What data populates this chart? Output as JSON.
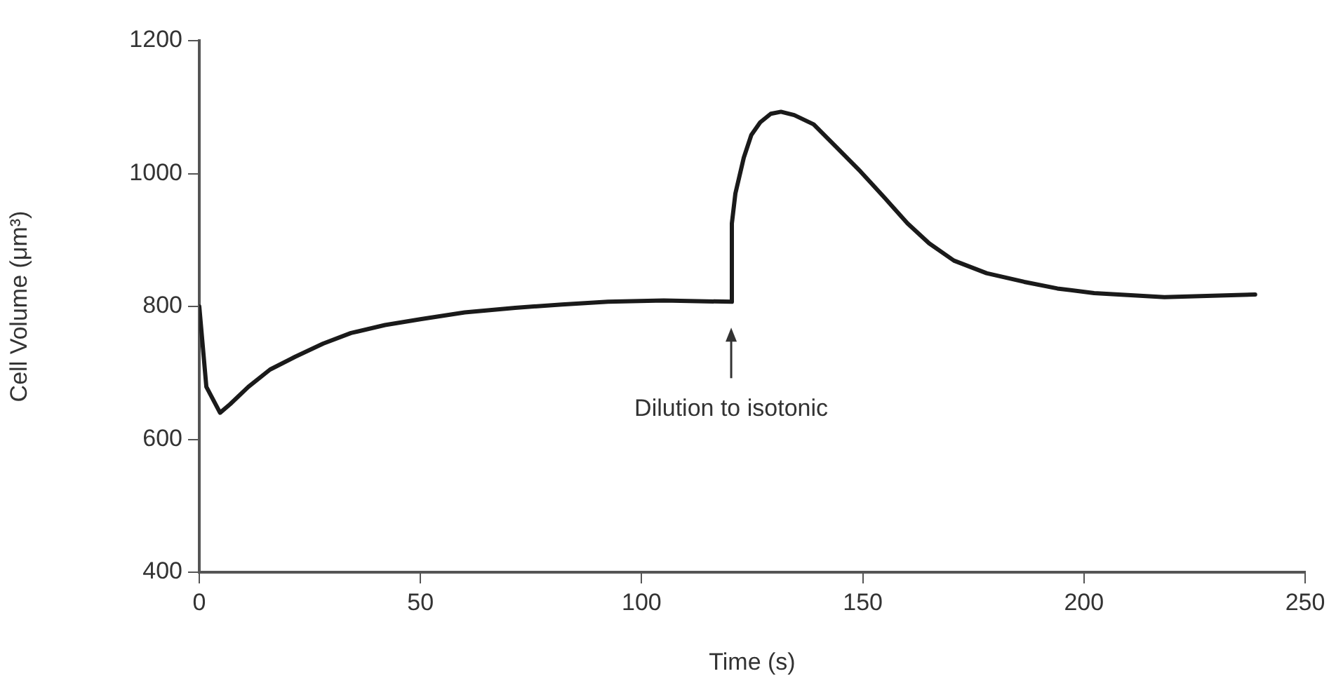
{
  "chart_data": {
    "type": "line",
    "xlabel": "Time (s)",
    "ylabel": "Cell Volume (μm³)",
    "xlim": [
      0,
      250
    ],
    "ylim": [
      400,
      1200
    ],
    "xticks": [
      0,
      50,
      100,
      150,
      200,
      250
    ],
    "yticks": [
      400,
      600,
      800,
      1000,
      1200
    ],
    "grid": false,
    "legend": false,
    "marker": "none",
    "line_style": "solid",
    "series": [
      {
        "color": "#1a1a1a",
        "x": [
          0,
          1.6,
          4.7,
          7,
          11.1,
          16,
          21.6,
          28,
          34.3,
          42,
          50.2,
          60,
          71.4,
          82,
          92.4,
          105,
          120.4,
          120.4,
          121.2,
          123.1,
          124.8,
          126.8,
          129.2,
          131.5,
          134.5,
          138.9,
          144,
          149.5,
          155,
          160.1,
          165,
          170.6,
          178,
          186.5,
          194,
          202.3,
          218.2,
          238.7
        ],
        "values": [
          800,
          679,
          640,
          653,
          679,
          705,
          724,
          744,
          760,
          772,
          781,
          791,
          798,
          803,
          807,
          809,
          807,
          925,
          970,
          1024,
          1058,
          1077,
          1090,
          1093,
          1088,
          1074,
          1040,
          1003,
          963,
          925,
          895,
          869,
          850,
          837,
          827,
          820,
          814,
          818
        ]
      }
    ],
    "annotations": [
      "Dilution to isotonic"
    ]
  }
}
